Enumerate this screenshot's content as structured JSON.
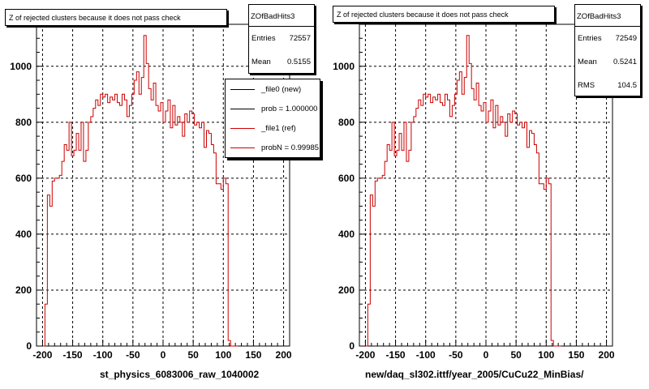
{
  "chart_data": [
    {
      "type": "histogram",
      "title": "Z of rejected clusters  because it does not pass check",
      "xlabel": "st_physics_6083006_raw_1040002",
      "xlim": [
        -210,
        210
      ],
      "ylim": [
        0,
        1150
      ],
      "xticks": [
        -200,
        -150,
        -100,
        -50,
        0,
        50,
        100,
        150,
        200
      ],
      "yticks": [
        0,
        200,
        400,
        600,
        800,
        1000
      ],
      "grid": true,
      "stats": {
        "name": "ZOfBadHits3",
        "entries_label": "Entries",
        "entries": "72557",
        "mean_label": "Mean",
        "mean": "0.5155"
      },
      "legend": {
        "placement": "top-right",
        "entries": [
          {
            "label": "_file0 (new)",
            "color": "#000000"
          },
          {
            "label": "prob = 1.000000",
            "color": "#000000"
          },
          {
            "label": "_file1 (ref)",
            "color": "#cc0000"
          },
          {
            "label": "probN = 0.99985",
            "color": "#cc0000"
          }
        ]
      },
      "line_color": "#cc0000",
      "bin_start": -200,
      "bin_width": 4,
      "values": [
        0,
        150,
        540,
        500,
        590,
        600,
        600,
        610,
        660,
        720,
        700,
        800,
        680,
        700,
        760,
        700,
        800,
        660,
        700,
        800,
        820,
        850,
        880,
        860,
        900,
        890,
        900,
        870,
        890,
        880,
        900,
        870,
        860,
        900,
        880,
        820,
        860,
        900,
        950,
        980,
        900,
        960,
        1110,
        1010,
        920,
        880,
        940,
        860,
        840,
        870,
        800,
        840,
        880,
        780,
        860,
        790,
        820,
        800,
        750,
        830,
        800,
        840,
        830,
        790,
        800,
        780,
        800,
        710,
        770,
        760,
        720,
        690,
        580,
        580,
        560,
        600,
        580,
        20,
        0,
        0,
        0
      ]
    },
    {
      "type": "histogram",
      "title": "Z of rejected clusters  because it does not pass check",
      "xlabel": "new/daq_sl302.ittf/year_2005/CuCu22_MinBias/",
      "xlim": [
        -210,
        210
      ],
      "ylim": [
        0,
        1150
      ],
      "xticks": [
        -200,
        -150,
        -100,
        -50,
        0,
        50,
        100,
        150,
        200
      ],
      "yticks": [
        0,
        200,
        400,
        600,
        800,
        1000
      ],
      "grid": true,
      "stats": {
        "name": "ZOfBadHits3",
        "entries_label": "Entries",
        "entries": "72549",
        "mean_label": "Mean",
        "mean": "0.5241",
        "rms_label": "RMS",
        "rms": "104.5"
      },
      "line_color": "#cc0000",
      "bin_start": -200,
      "bin_width": 4,
      "values": [
        0,
        150,
        540,
        500,
        590,
        600,
        600,
        610,
        660,
        720,
        700,
        800,
        680,
        700,
        760,
        700,
        800,
        660,
        700,
        800,
        820,
        850,
        880,
        860,
        900,
        890,
        900,
        870,
        890,
        880,
        900,
        870,
        860,
        900,
        880,
        820,
        860,
        900,
        950,
        980,
        900,
        960,
        1110,
        1010,
        920,
        880,
        940,
        860,
        840,
        870,
        800,
        840,
        880,
        780,
        860,
        790,
        820,
        800,
        750,
        830,
        800,
        840,
        830,
        790,
        800,
        780,
        800,
        710,
        770,
        760,
        720,
        690,
        580,
        580,
        560,
        600,
        580,
        20,
        0,
        0,
        0
      ]
    }
  ]
}
